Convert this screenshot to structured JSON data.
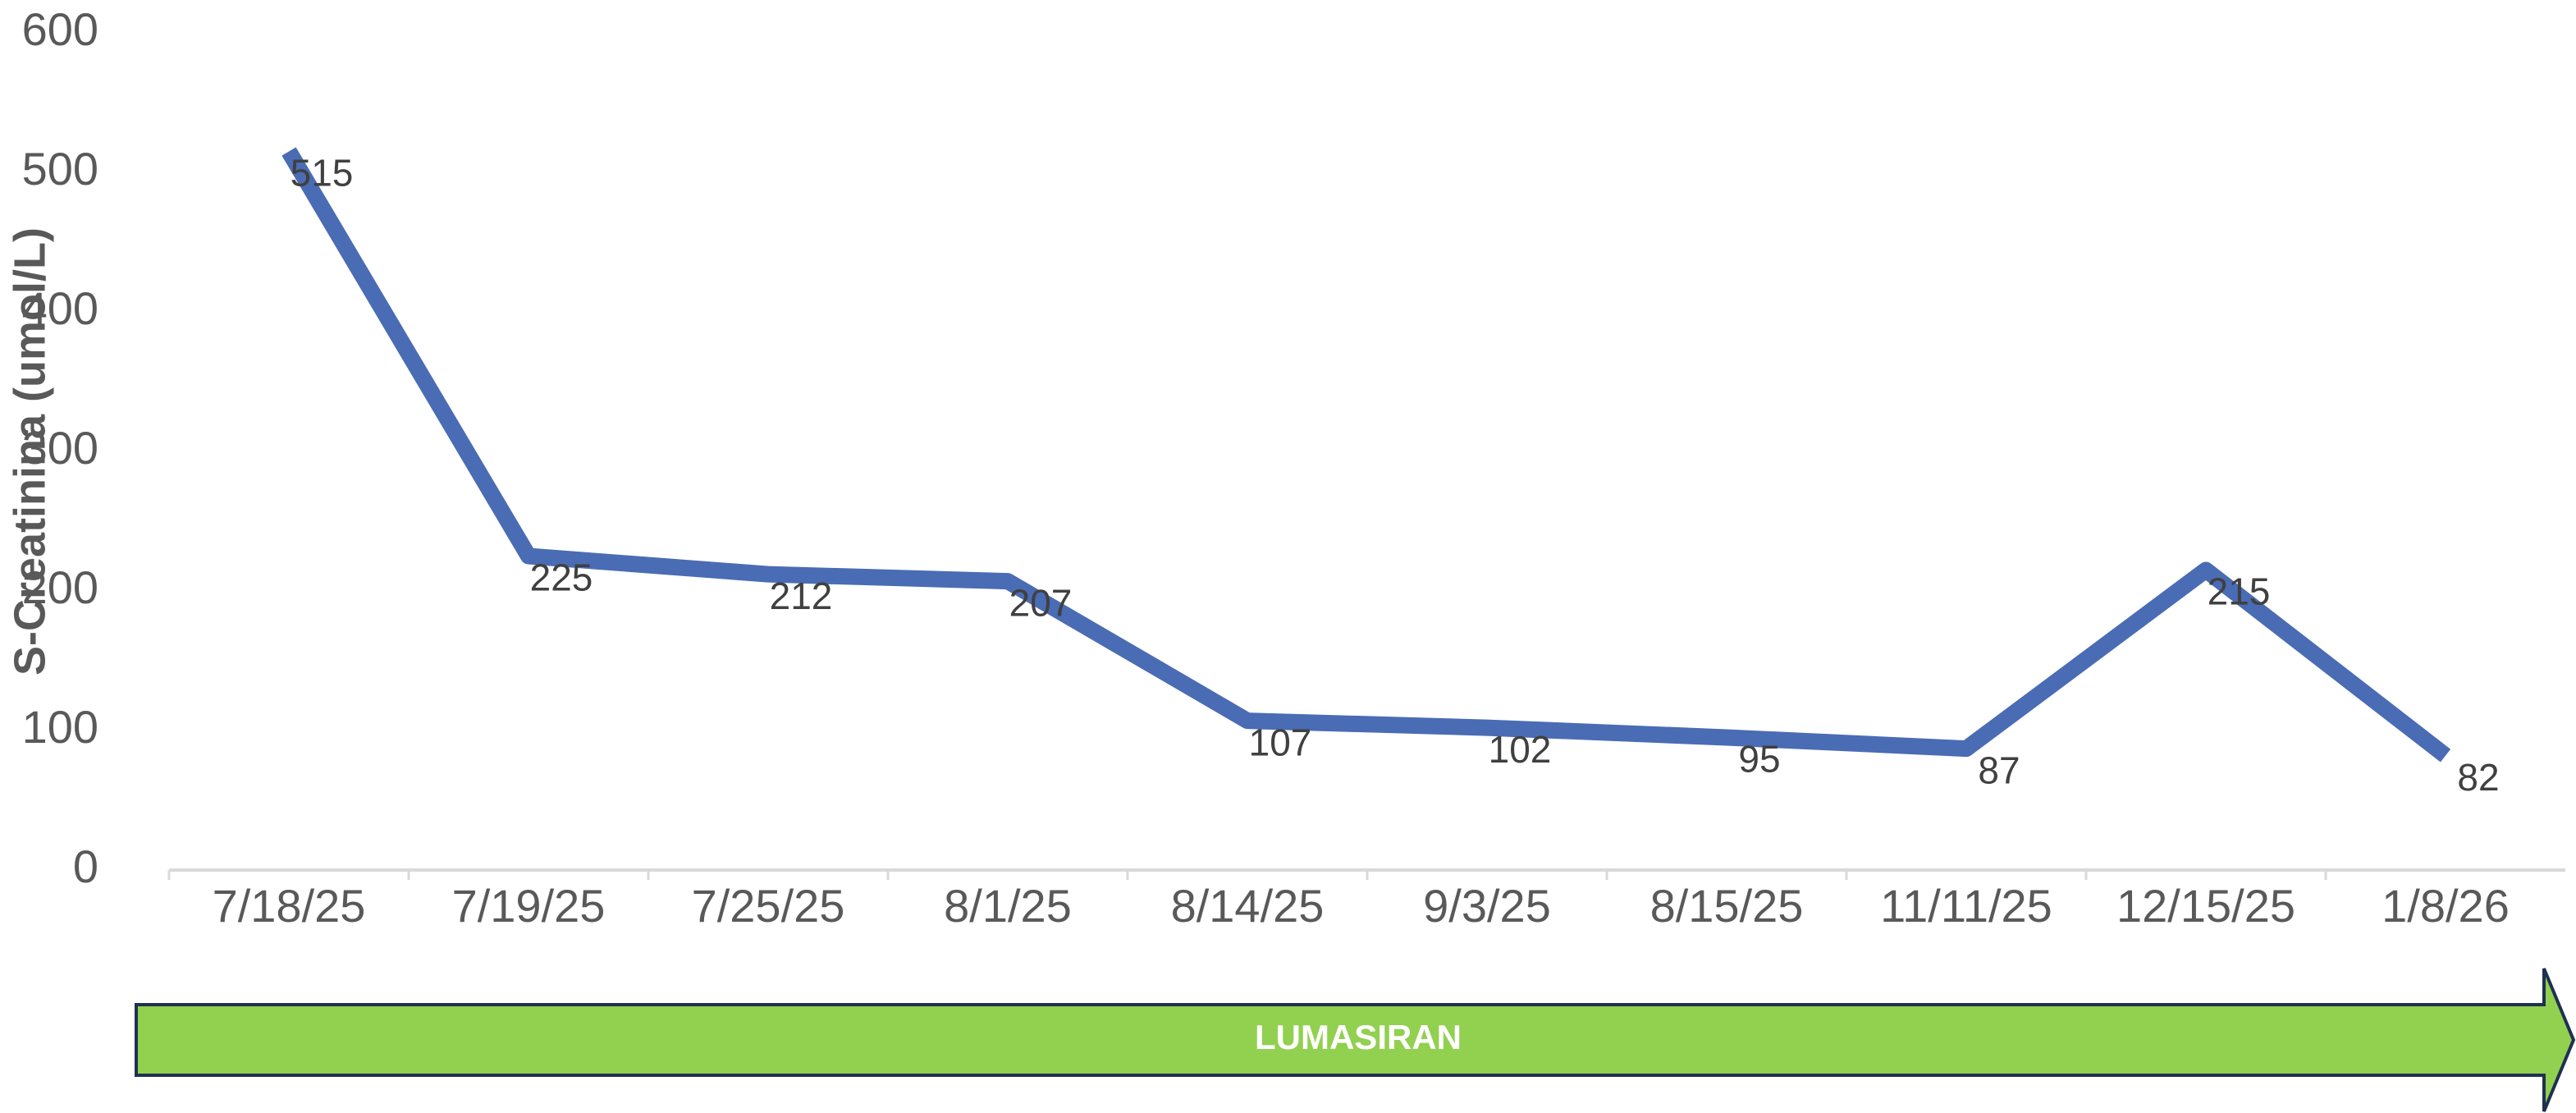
{
  "chart_data": {
    "type": "line",
    "y_label": "S-Creatinina (umol/L)",
    "annotation": "LUMASIRAN",
    "categories": [
      "7/18/25",
      "7/19/25",
      "7/25/25",
      "8/1/25",
      "8/14/25",
      "9/3/25",
      "8/15/25",
      "11/11/25",
      "12/15/25",
      "1/8/26"
    ],
    "values": [
      515,
      225,
      212,
      207,
      107,
      102,
      95,
      87,
      215,
      82
    ],
    "color": "#4a6cb4",
    "ylim": [
      0,
      600
    ],
    "yticks": [
      0,
      100,
      200,
      300,
      400,
      500,
      600
    ],
    "grid": false
  }
}
